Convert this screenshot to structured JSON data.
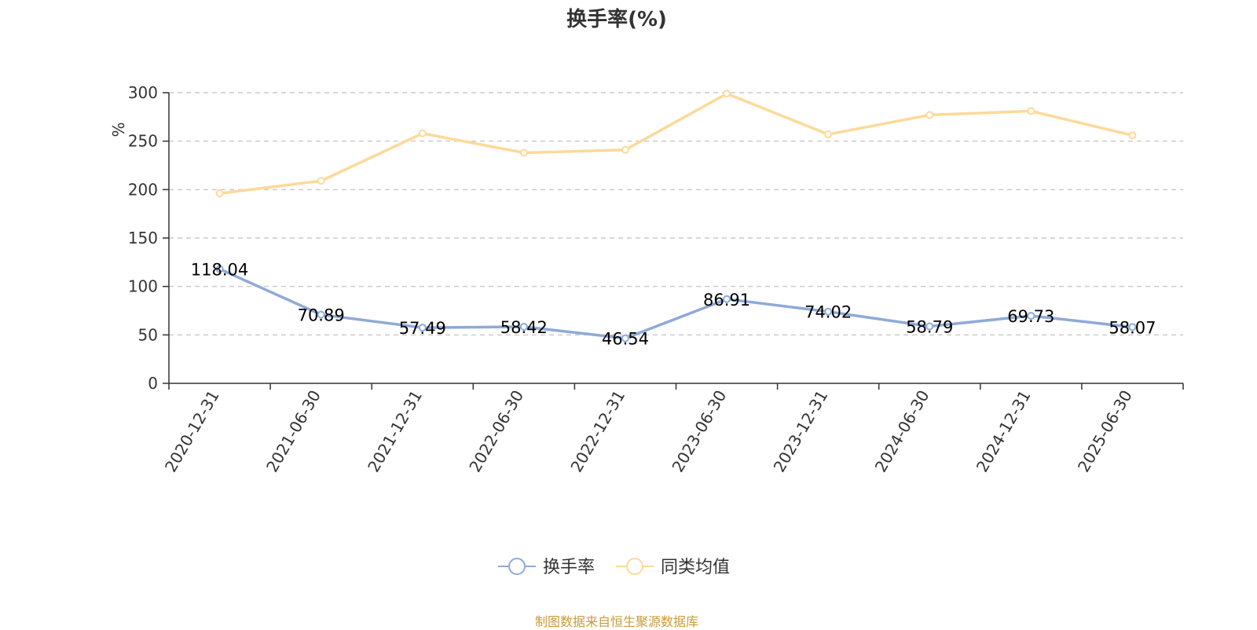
{
  "chart_data": {
    "type": "line",
    "title": "换手率(%)",
    "ylabel": "%",
    "ylim": [
      0,
      300
    ],
    "yticks": [
      0,
      50,
      100,
      150,
      200,
      250,
      300
    ],
    "grid": true,
    "legend_position": "bottom",
    "categories": [
      "2020-12-31",
      "2021-06-30",
      "2021-12-31",
      "2022-06-30",
      "2022-12-31",
      "2023-06-30",
      "2023-12-31",
      "2024-06-30",
      "2024-12-31",
      "2025-06-30"
    ],
    "series": [
      {
        "name": "换手率",
        "color": "#8eaad8",
        "values": [
          118.04,
          70.89,
          57.49,
          58.42,
          46.54,
          86.91,
          74.02,
          58.79,
          69.73,
          58.07
        ],
        "labels": [
          "118.04",
          "70.89",
          "57.49",
          "58.42",
          "46.54",
          "86.91",
          "74.02",
          "58.79",
          "69.73",
          "58.07"
        ],
        "show_labels": true
      },
      {
        "name": "同类均值",
        "color": "#fdd999",
        "values": [
          196,
          209,
          258,
          238,
          241,
          299,
          257,
          277,
          281,
          256
        ],
        "show_labels": false
      }
    ]
  },
  "source_note": "制图数据来自恒生聚源数据库"
}
